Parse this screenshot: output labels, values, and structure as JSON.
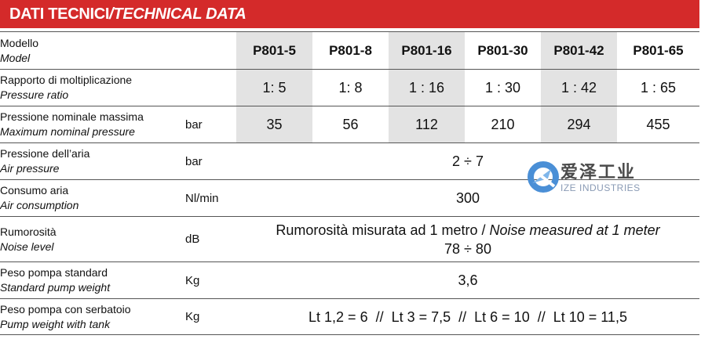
{
  "header": {
    "title_it": "DATI TECNICI",
    "separator": " / ",
    "title_en": "TECHNICAL DATA"
  },
  "rows": {
    "model": {
      "label_it": "Modello",
      "label_en": "Model",
      "unit": "",
      "values": [
        "P801-5",
        "P801-8",
        "P801-16",
        "P801-30",
        "P801-42",
        "P801-65"
      ]
    },
    "ratio": {
      "label_it": "Rapporto di moltiplicazione",
      "label_en": "Pressure ratio",
      "unit": "",
      "values": [
        "1: 5",
        "1: 8",
        "1 : 16",
        "1 : 30",
        "1 : 42",
        "1 : 65"
      ]
    },
    "max_pressure": {
      "label_it": "Pressione nominale massima",
      "label_en": "Maximum nominal pressure",
      "unit": "bar",
      "values": [
        "35",
        "56",
        "112",
        "210",
        "294",
        "455"
      ]
    },
    "air_pressure": {
      "label_it": "Pressione dell’aria",
      "label_en": "Air pressure",
      "unit": "bar",
      "value": "2 ÷ 7"
    },
    "air_consumption": {
      "label_it": "Consumo aria",
      "label_en": "Air consumption",
      "unit": "Nl/min",
      "value": "300"
    },
    "noise": {
      "label_it": "Rumorosità",
      "label_en": "Noise level",
      "unit": "dB",
      "note_it": "Rumorosità misurata ad 1 metro / ",
      "note_en": "Noise measured at 1 meter",
      "value": "78 ÷ 80"
    },
    "weight": {
      "label_it": "Peso pompa standard",
      "label_en": "Standard pump weight",
      "unit": "Kg",
      "value": "3,6"
    },
    "weight_tank": {
      "label_it": "Peso pompa con serbatoio",
      "label_en": "Pump weight with tank",
      "unit": "Kg",
      "value": "Lt 1,2 = 6  //  Lt 3 = 7,5  //  Lt 6 = 10  //  Lt 10 = 11,5"
    }
  },
  "watermark": {
    "name_cn": "爱泽工业",
    "name_en": "IZE INDUSTRIES",
    "colors": {
      "ring": "#4a8fd6",
      "arrow": "#7fb6ea"
    }
  }
}
